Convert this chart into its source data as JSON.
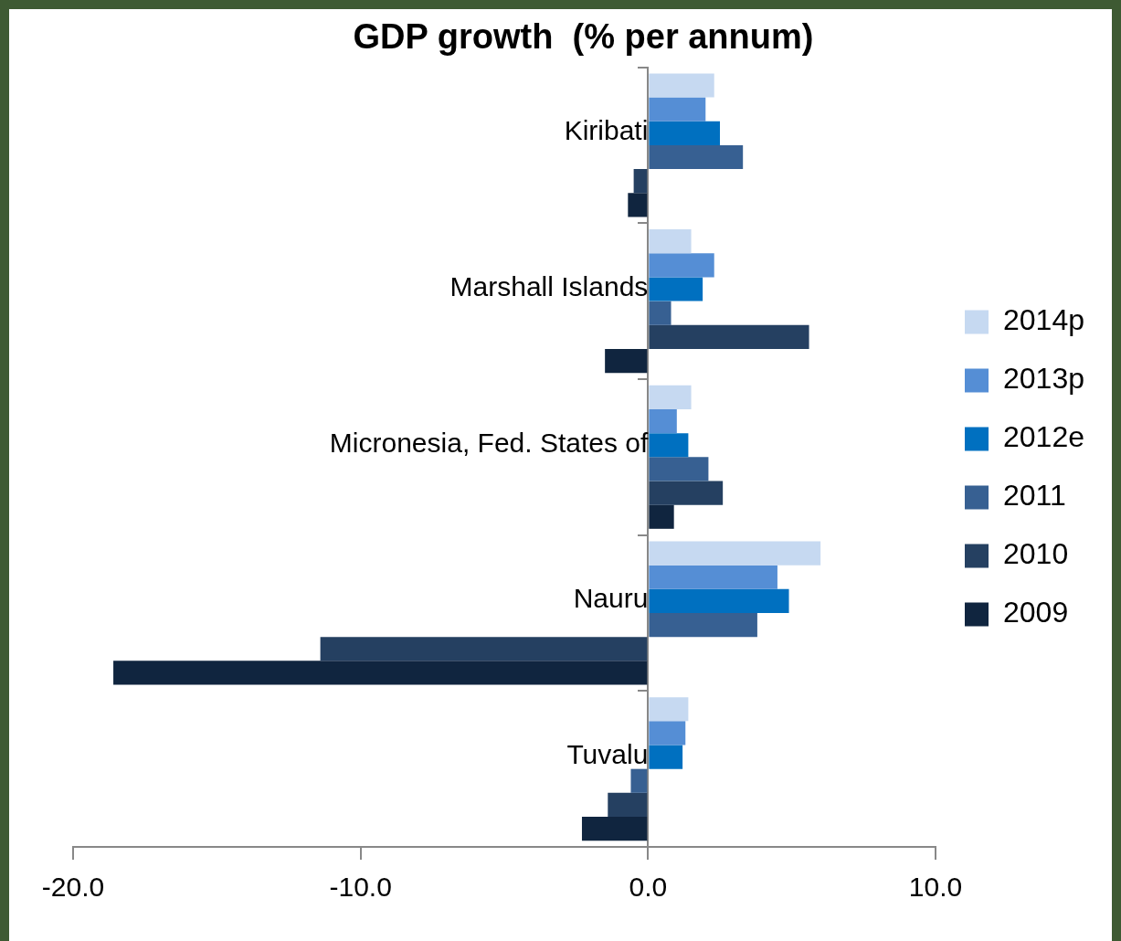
{
  "chart_data": {
    "type": "bar",
    "orientation": "horizontal",
    "title": "GDP growth  (% per annum)",
    "categories": [
      "Kiribati",
      "Marshall Islands",
      "Micronesia, Fed. States of",
      "Nauru",
      "Tuvalu"
    ],
    "series": [
      {
        "name": "2014p",
        "color": "#c6d9f1",
        "values": [
          2.3,
          1.5,
          1.5,
          6.0,
          1.4
        ]
      },
      {
        "name": "2013p",
        "color": "#558ed5",
        "values": [
          2.0,
          2.3,
          1.0,
          4.5,
          1.3
        ]
      },
      {
        "name": "2012e",
        "color": "#0070c0",
        "values": [
          2.5,
          1.9,
          1.4,
          4.9,
          1.2
        ]
      },
      {
        "name": "2011",
        "color": "#376092",
        "values": [
          3.3,
          0.8,
          2.1,
          3.8,
          -0.6
        ]
      },
      {
        "name": "2010",
        "color": "#254061",
        "values": [
          -0.5,
          5.6,
          2.6,
          -11.4,
          -1.4
        ]
      },
      {
        "name": "2009",
        "color": "#10253f",
        "values": [
          -0.7,
          -1.5,
          0.9,
          -18.6,
          -2.3
        ]
      }
    ],
    "xlim": [
      -20,
      10
    ],
    "xticks": [
      {
        "value": -20,
        "label": "-20.0"
      },
      {
        "value": -10,
        "label": "-10.0"
      },
      {
        "value": 0,
        "label": "0.0"
      },
      {
        "value": 10,
        "label": "10.0"
      }
    ],
    "grid": false,
    "legend": "right"
  }
}
